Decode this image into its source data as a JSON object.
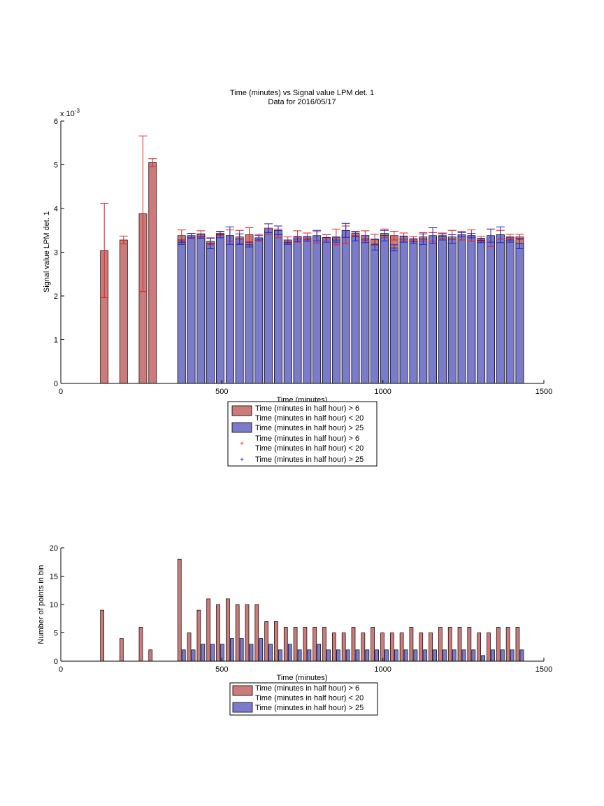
{
  "chart_data": [
    {
      "type": "bar",
      "title": "Time (minutes) vs Signal value LPM det. 1",
      "subtitle": "Data for 2016/05/17",
      "xlabel": "Time (minutes)",
      "ylabel": "Signal value LPM det. 1",
      "y_exponent_label": "x 10",
      "y_exponent_power": "-3",
      "xlim": [
        0,
        1500
      ],
      "ylim": [
        0,
        6
      ],
      "x_ticks": [
        "0",
        "500",
        "1000",
        "1500"
      ],
      "y_ticks": [
        "0",
        "1",
        "2",
        "3",
        "4",
        "5",
        "6"
      ],
      "grid": false,
      "legend_placement": "below",
      "legend": {
        "bar_red_line1": "Time (minutes in half hour) > 6",
        "bar_red_line2": "Time (minutes in half hour) < 20",
        "bar_blue": "Time (minutes in half hour) > 25",
        "err_red_line1": "Time (minutes in half hour) > 6",
        "err_red_line2": "Time (minutes in half hour) < 20",
        "err_blue": "Time (minutes in half hour) > 25"
      },
      "colors": {
        "red_bar": "#cc7a7a",
        "blue_bar": "#7b7bcc",
        "red_err": "#dd2222",
        "blue_err": "#2222cc"
      },
      "series": [
        {
          "color_key": "red",
          "x": [
            135,
            195,
            255,
            285,
            375,
            405,
            435,
            465,
            495,
            525,
            555,
            585,
            615,
            645,
            675,
            705,
            735,
            765,
            795,
            825,
            855,
            885,
            915,
            945,
            975,
            1005,
            1035,
            1065,
            1095,
            1125,
            1155,
            1185,
            1215,
            1245,
            1275,
            1305,
            1335,
            1365,
            1395,
            1425
          ],
          "values": [
            3.04,
            3.28,
            3.88,
            5.05,
            3.38,
            3.37,
            3.41,
            3.25,
            3.43,
            3.38,
            3.35,
            3.4,
            3.33,
            3.48,
            3.43,
            3.28,
            3.36,
            3.36,
            3.34,
            3.34,
            3.35,
            3.4,
            3.43,
            3.38,
            3.3,
            3.43,
            3.38,
            3.35,
            3.31,
            3.35,
            3.35,
            3.38,
            3.35,
            3.38,
            3.38,
            3.3,
            3.33,
            3.4,
            3.35,
            3.35
          ],
          "err": [
            1.08,
            0.09,
            1.78,
            0.09,
            0.13,
            0.06,
            0.08,
            0.08,
            0.05,
            0.13,
            0.15,
            0.16,
            0.08,
            0.07,
            0.1,
            0.07,
            0.13,
            0.08,
            0.13,
            0.06,
            0.18,
            0.2,
            0.05,
            0.11,
            0.11,
            0.1,
            0.1,
            0.09,
            0.05,
            0.1,
            0.1,
            0.06,
            0.15,
            0.1,
            0.13,
            0.06,
            0.2,
            0.1,
            0.06,
            0.06
          ]
        },
        {
          "color_key": "blue",
          "x": [
            375,
            405,
            435,
            465,
            495,
            525,
            555,
            585,
            615,
            645,
            675,
            705,
            735,
            765,
            795,
            825,
            855,
            885,
            915,
            945,
            975,
            1005,
            1035,
            1065,
            1095,
            1125,
            1155,
            1185,
            1215,
            1245,
            1275,
            1305,
            1335,
            1365,
            1395,
            1425
          ],
          "values": [
            3.23,
            3.38,
            3.37,
            3.2,
            3.4,
            3.38,
            3.3,
            3.17,
            3.33,
            3.55,
            3.5,
            3.23,
            3.3,
            3.3,
            3.38,
            3.28,
            3.28,
            3.5,
            3.36,
            3.3,
            3.17,
            3.38,
            3.1,
            3.3,
            3.25,
            3.3,
            3.38,
            3.35,
            3.3,
            3.4,
            3.38,
            3.27,
            3.38,
            3.4,
            3.28,
            3.2
          ],
          "err": [
            0.05,
            0.05,
            0.05,
            0.12,
            0.07,
            0.2,
            0.12,
            0.05,
            0.05,
            0.1,
            0.1,
            0.05,
            0.05,
            0.05,
            0.12,
            0.05,
            0.05,
            0.16,
            0.1,
            0.08,
            0.12,
            0.12,
            0.07,
            0.07,
            0.05,
            0.12,
            0.18,
            0.07,
            0.1,
            0.05,
            0.05,
            0.05,
            0.15,
            0.18,
            0.05,
            0.12
          ]
        }
      ]
    },
    {
      "type": "bar",
      "xlabel": "Time (minutes)",
      "ylabel": "Number of points in bin",
      "xlim": [
        0,
        1500
      ],
      "ylim": [
        0,
        20
      ],
      "x_ticks": [
        "0",
        "500",
        "1000",
        "1500"
      ],
      "y_ticks": [
        "0",
        "5",
        "10",
        "15",
        "20"
      ],
      "grid": false,
      "legend_placement": "below",
      "legend": {
        "bar_red_line1": "Time (minutes in half hour) > 6",
        "bar_red_line2": "Time (minutes in half hour) < 20",
        "bar_blue": "Time (minutes in half hour) > 25"
      },
      "colors": {
        "red_bar": "#cc7a7a",
        "blue_bar": "#7b7bcc"
      },
      "series": [
        {
          "color_key": "red",
          "x": [
            135,
            195,
            255,
            285,
            375,
            405,
            435,
            465,
            495,
            525,
            555,
            585,
            615,
            645,
            675,
            705,
            735,
            765,
            795,
            825,
            855,
            885,
            915,
            945,
            975,
            1005,
            1035,
            1065,
            1095,
            1125,
            1155,
            1185,
            1215,
            1245,
            1275,
            1305,
            1335,
            1365,
            1395,
            1425
          ],
          "values": [
            9,
            4,
            6,
            2,
            18,
            5,
            9,
            11,
            10,
            11,
            10,
            10,
            10,
            7,
            7,
            6,
            6,
            6,
            6,
            6,
            5,
            5,
            6,
            5,
            6,
            5,
            5,
            5,
            6,
            5,
            5,
            6,
            6,
            6,
            6,
            5,
            5,
            6,
            6,
            6
          ]
        },
        {
          "color_key": "blue",
          "x": [
            375,
            405,
            435,
            465,
            495,
            525,
            555,
            585,
            615,
            645,
            675,
            705,
            735,
            765,
            795,
            825,
            855,
            885,
            915,
            945,
            975,
            1005,
            1035,
            1065,
            1095,
            1125,
            1155,
            1185,
            1215,
            1245,
            1275,
            1305,
            1335,
            1365,
            1395,
            1425
          ],
          "values": [
            2,
            2,
            3,
            3,
            3,
            4,
            4,
            3,
            4,
            3,
            2,
            3,
            2,
            2,
            3,
            2,
            2,
            2,
            2,
            2,
            2,
            2,
            2,
            2,
            2,
            2,
            2,
            2,
            2,
            2,
            2,
            1,
            2,
            2,
            2,
            2
          ]
        }
      ]
    }
  ]
}
